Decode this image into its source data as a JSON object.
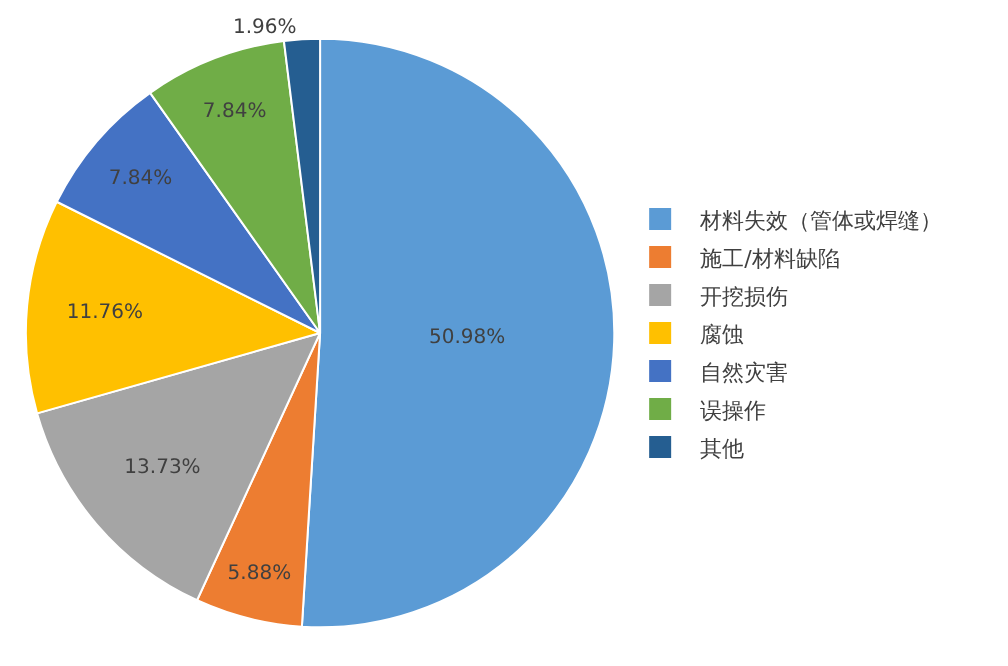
{
  "chart_data": {
    "type": "pie",
    "categories": [
      "材料失效（管体或焊缝）",
      "施工/材料缺陷",
      "开挖损伤",
      "腐蚀",
      "自然灾害",
      "误操作",
      "其他"
    ],
    "values": [
      50.98,
      5.88,
      13.73,
      11.76,
      7.84,
      7.84,
      1.96
    ],
    "value_labels": [
      "50.98%",
      "5.88%",
      "13.73%",
      "11.76%",
      "7.84%",
      "7.84%",
      "1.96%"
    ],
    "colors": [
      "#5b9bd5",
      "#ed7d31",
      "#a5a5a5",
      "#ffc000",
      "#4472c4",
      "#70ad47",
      "#255e91"
    ],
    "legend": "right"
  }
}
